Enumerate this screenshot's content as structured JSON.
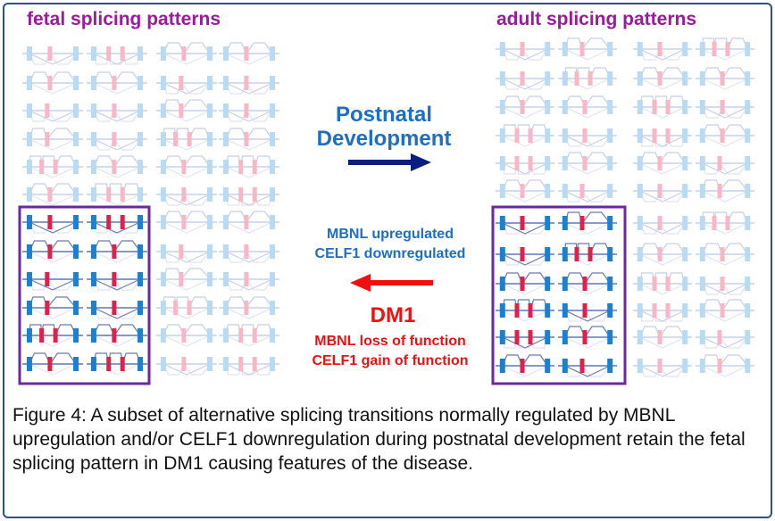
{
  "fetal_title": "fetal splicing patterns",
  "adult_title": "adult splicing patterns",
  "development": {
    "label_line1": "Postnatal",
    "label_line2": "Development",
    "arrow_color": "#0a1e80"
  },
  "regulation": {
    "line1": "MBNL upregulated",
    "line2": "CELF1 downregulated",
    "color": "#1c6fc4"
  },
  "disease": {
    "label": "DM1",
    "line1": "MBNL loss of function",
    "line2": "CELF1 gain of function",
    "color": "#f01010"
  },
  "caption": "Figure 4: A subset of alternative splicing transitions normally regulated by MBNL upregulation and/or CELF1 downregulation during postnatal development retain the fetal splicing pattern in DM1 causing features of the disease.",
  "colors": {
    "box": "#6a2a9c",
    "exon_strong": "#1a80d0",
    "alt_exon_strong": "#e0204a",
    "exon_faint": "#b8daf2",
    "alt_exon_faint": "#f8b6c6"
  }
}
